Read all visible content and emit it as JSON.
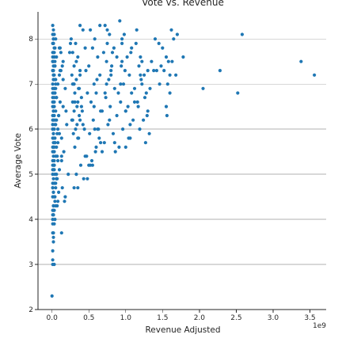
{
  "chart_data": {
    "type": "scatter",
    "title": "Vote vs. Revenue",
    "xlabel": "Revenue Adjusted",
    "ylabel": "Average Vote",
    "x_offset_label": "1e9",
    "x_unit_multiplier": 1000000000,
    "xlim": [
      -190000000.0,
      3720000000.0
    ],
    "ylim": [
      2.0,
      8.6
    ],
    "x_ticks": [
      0,
      500000000.0,
      1000000000.0,
      1500000000.0,
      2000000000.0,
      2500000000.0,
      3000000000.0,
      3500000000.0
    ],
    "x_tick_labels": [
      "0.0",
      "0.5",
      "1.0",
      "1.5",
      "2.0",
      "2.5",
      "3.0",
      "3.5"
    ],
    "y_ticks": [
      2,
      3,
      4,
      5,
      6,
      7,
      8
    ],
    "y_tick_labels": [
      "2",
      "3",
      "4",
      "5",
      "6",
      "7",
      "8"
    ],
    "grid": "horizontal",
    "marker_color": "#1f77b4",
    "series": [
      {
        "x": [
          10000000.0,
          20000000.0,
          30000000.0,
          20000000.0,
          50000000.0,
          10000000.0,
          20000000.0,
          40000000.0,
          100000000.0,
          20000000.0,
          10000000.0,
          30000000.0,
          60000000.0,
          150000000.0,
          10000000.0,
          20000000.0,
          40000000.0,
          120000000.0,
          10000000.0,
          30000000.0,
          20000000.0,
          20000000.0,
          50000000.0,
          80000000.0,
          10000000.0,
          30000000.0,
          180000000.0,
          20000000.0,
          40000000.0,
          10000000.0,
          60000000.0,
          20000000.0,
          110000000.0,
          30000000.0,
          10000000.0,
          50000000.0,
          20000000.0,
          90000000.0,
          30000000.0,
          10000000.0,
          20000000.0,
          40000000.0,
          200000000.0,
          10000000.0,
          30000000.0,
          70000000.0,
          20000000.0,
          10000000.0,
          130000000.0,
          40000000.0,
          20000000.0,
          60000000.0,
          10000000.0,
          30000000.0,
          160000000.0,
          20000000.0,
          50000000.0,
          10000000.0,
          80000000.0,
          30000000.0,
          20000000.0,
          100000000.0,
          10000000.0,
          40000000.0,
          220000000.0,
          20000000.0,
          60000000.0,
          30000000.0,
          10000000.0,
          140000000.0,
          50000000.0,
          20000000.0,
          90000000.0,
          10000000.0,
          30000000.0,
          170000000.0,
          40000000.0,
          20000000.0,
          70000000.0,
          10000000.0,
          250000000.0,
          30000000.0,
          110000000.0,
          20000000.0,
          50000000.0,
          10000000.0,
          190000000.0,
          40000000.0,
          80000000.0,
          20000000.0,
          30000000.0,
          130000000.0,
          10000000.0,
          60000000.0,
          240000000.0,
          20000000.0,
          100000000.0,
          40000000.0,
          150000000.0,
          10000000.0,
          260000000.0,
          320000000.0,
          280000000.0,
          350000000.0,
          300000000.0,
          380000000.0,
          270000000.0,
          330000000.0,
          290000000.0,
          360000000.0,
          310000000.0,
          400000000.0,
          280000000.0,
          340000000.0,
          300000000.0,
          370000000.0,
          270000000.0,
          420000000.0,
          320000000.0,
          290000000.0,
          450000000.0,
          330000000.0,
          380000000.0,
          300000000.0,
          480000000.0,
          350000000.0,
          410000000.0,
          280000000.0,
          440000000.0,
          360000000.0,
          310000000.0,
          470000000.0,
          390000000.0,
          330000000.0,
          430000000.0,
          300000000.0,
          460000000.0,
          370000000.0,
          400000000.0,
          340000000.0,
          520000000.0,
          580000000.0,
          550000000.0,
          620000000.0,
          500000000.0,
          650000000.0,
          570000000.0,
          600000000.0,
          530000000.0,
          680000000.0,
          560000000.0,
          630000000.0,
          510000000.0,
          660000000.0,
          590000000.0,
          540000000.0,
          700000000.0,
          610000000.0,
          570000000.0,
          640000000.0,
          720000000.0,
          780000000.0,
          750000000.0,
          820000000.0,
          740000000.0,
          800000000.0,
          770000000.0,
          850000000.0,
          730000000.0,
          790000000.0,
          880000000.0,
          760000000.0,
          830000000.0,
          710000000.0,
          860000000.0,
          810000000.0,
          900000000.0,
          780000000.0,
          840000000.0,
          740000000.0,
          920000000.0,
          980000000.0,
          950000000.0,
          1020000000.0,
          940000000.0,
          1050000000.0,
          970000000.0,
          1080000000.0,
          930000000.0,
          1000000000.0,
          1100000000.0,
          960000000.0,
          1040000000.0,
          910000000.0,
          1070000000.0,
          990000000.0,
          1120000000.0,
          1030000000.0,
          950000000.0,
          1060000000.0,
          1150000000.0,
          1200000000.0,
          1180000000.0,
          1250000000.0,
          1220000000.0,
          1280000000.0,
          1160000000.0,
          1300000000.0,
          1240000000.0,
          1190000000.0,
          1320000000.0,
          1270000000.0,
          1140000000.0,
          1350000000.0,
          1210000000.0,
          1380000000.0,
          1260000000.0,
          1170000000.0,
          1330000000.0,
          1290000000.0,
          20000000.0,
          30000000.0,
          10000000.0,
          40000000.0,
          20000000.0,
          50000000.0,
          10000000.0,
          30000000.0,
          20000000.0,
          60000000.0,
          10000000.0,
          40000000.0,
          20000000.0,
          70000000.0,
          30000000.0,
          10000000.0,
          50000000.0,
          20000000.0,
          80000000.0,
          30000000.0,
          20000000.0,
          120000000.0,
          40000000.0,
          10000000.0,
          150000000.0,
          30000000.0,
          60000000.0,
          20000000.0,
          90000000.0,
          10000000.0,
          100000000.0,
          40000000.0,
          20000000.0,
          130000000.0,
          30000000.0,
          70000000.0,
          10000000.0,
          180000000.0,
          50000000.0,
          20000000.0,
          10000000.0,
          20000000.0,
          30000000.0,
          10000000.0,
          20000000.0,
          40000000.0,
          10000000.0,
          30000000.0,
          20000000.0,
          10000000.0,
          50000000.0,
          20000000.0,
          80000000.0,
          10000000.0,
          30000000.0,
          20000000.0,
          60000000.0,
          10000000.0,
          40000000.0,
          20000000.0,
          110000000.0,
          140000000.0,
          280000000.0,
          310000000.0,
          380000000.0,
          350000000.0,
          450000000.0,
          520000000.0,
          600000000.0,
          580000000.0,
          660000000.0,
          720000000.0,
          800000000.0,
          880000000.0,
          930000000.0,
          1000000000.0,
          1060000000.0,
          1120000000.0,
          1200000000.0,
          40000000.0,
          20000000.0,
          10000000.0,
          30000000.0,
          20000000.0,
          10000000.0,
          20000000.0,
          10000000.0,
          30000000.0,
          10000000.0,
          20000000.0,
          10000000.0,
          130000000.0,
          20000000.0,
          10000000.0,
          0.0,
          10000000.0,
          380000000.0,
          420000000.0,
          650000000.0,
          750000000.0,
          950000000.0,
          1080000000.0,
          1220000000.0,
          1300000000.0,
          550000000.0,
          480000000.0,
          680000000.0,
          850000000.0,
          350000000.0,
          1000000000.0,
          500000000.0,
          620000000.0,
          1400000000.0,
          1450000000.0,
          1500000000.0,
          1550000000.0,
          1620000000.0,
          1650000000.0,
          1700000000.0,
          1580000000.0,
          1520000000.0,
          1600000000.0,
          1480000000.0,
          1630000000.0,
          1570000000.0,
          1420000000.0,
          1680000000.0,
          1460000000.0,
          1780000000.0,
          1550000000.0,
          1600000000.0,
          1560000000.0,
          2050000000.0,
          2280000000.0,
          2520000000.0,
          2580000000.0,
          3380000000.0,
          3560000000.0
        ],
        "y": [
          8.3,
          8.2,
          8.1,
          8.0,
          8.0,
          7.9,
          7.9,
          7.8,
          7.8,
          7.7,
          7.7,
          7.6,
          7.6,
          7.5,
          7.5,
          7.4,
          7.4,
          7.3,
          7.3,
          7.2,
          7.2,
          7.1,
          7.1,
          7.0,
          7.0,
          6.9,
          6.9,
          6.8,
          6.8,
          6.7,
          6.7,
          6.6,
          6.6,
          6.5,
          6.5,
          6.4,
          6.4,
          6.3,
          6.3,
          6.2,
          6.2,
          6.1,
          6.1,
          6.0,
          6.0,
          5.9,
          5.9,
          5.8,
          5.8,
          5.7,
          5.7,
          5.6,
          5.6,
          5.5,
          5.5,
          5.4,
          5.4,
          5.3,
          5.3,
          5.2,
          5.2,
          5.1,
          5.1,
          5.0,
          5.0,
          4.9,
          4.9,
          4.8,
          4.8,
          4.7,
          4.7,
          4.6,
          4.6,
          4.5,
          4.5,
          4.4,
          4.4,
          4.3,
          4.3,
          4.2,
          7.9,
          7.6,
          7.3,
          7.1,
          6.9,
          6.6,
          6.4,
          6.2,
          6.0,
          5.8,
          5.6,
          5.4,
          5.2,
          5.0,
          7.7,
          7.5,
          7.2,
          6.8,
          6.5,
          6.1,
          8.0,
          7.9,
          7.7,
          7.6,
          7.4,
          7.3,
          7.2,
          7.1,
          7.0,
          6.9,
          6.8,
          6.7,
          6.6,
          6.5,
          6.4,
          6.3,
          6.2,
          6.1,
          6.0,
          5.9,
          7.8,
          7.5,
          7.2,
          7.0,
          6.8,
          6.6,
          6.4,
          6.2,
          6.0,
          5.8,
          5.6,
          5.4,
          5.2,
          5.0,
          4.9,
          4.7,
          7.3,
          6.9,
          6.5,
          6.1,
          8.2,
          8.0,
          7.8,
          7.6,
          7.4,
          7.2,
          7.0,
          6.8,
          6.6,
          6.4,
          6.2,
          6.0,
          5.9,
          5.7,
          5.5,
          5.3,
          7.7,
          7.1,
          6.5,
          5.8,
          8.3,
          8.1,
          7.9,
          7.7,
          7.5,
          7.3,
          7.1,
          6.9,
          6.7,
          6.5,
          6.3,
          6.1,
          5.9,
          5.7,
          5.5,
          7.4,
          6.8,
          6.2,
          7.8,
          7.0,
          8.4,
          8.1,
          7.9,
          7.6,
          7.4,
          7.2,
          7.0,
          6.8,
          6.6,
          6.4,
          6.2,
          6.0,
          5.8,
          5.6,
          7.7,
          7.3,
          6.9,
          6.5,
          7.5,
          6.1,
          8.2,
          7.6,
          7.4,
          7.2,
          7.0,
          6.8,
          6.6,
          6.4,
          6.2,
          6.0,
          5.9,
          5.7,
          7.9,
          7.5,
          7.1,
          7.3,
          6.7,
          6.5,
          6.9,
          6.3,
          8.1,
          7.8,
          7.6,
          7.4,
          7.2,
          7.0,
          6.8,
          6.6,
          6.4,
          6.2,
          6.0,
          5.8,
          5.6,
          5.4,
          5.2,
          5.0,
          4.8,
          4.6,
          4.4,
          4.2,
          8.0,
          7.7,
          7.5,
          7.3,
          7.1,
          6.9,
          6.7,
          6.5,
          6.3,
          6.1,
          5.9,
          5.7,
          5.5,
          5.3,
          5.1,
          4.9,
          4.7,
          4.5,
          4.3,
          4.1,
          8.1,
          7.9,
          7.7,
          7.5,
          7.3,
          7.1,
          6.9,
          6.7,
          6.5,
          6.3,
          6.1,
          5.9,
          5.7,
          5.5,
          5.3,
          5.1,
          4.9,
          4.7,
          4.5,
          4.3,
          7.8,
          7.4,
          7.0,
          6.6,
          6.2,
          5.8,
          5.4,
          5.2,
          5.6,
          6.0,
          6.4,
          6.8,
          7.2,
          7.6,
          7.0,
          6.4,
          5.8,
          6.6,
          7.2,
          4.0,
          4.1,
          4.1,
          3.9,
          3.7,
          3.7,
          3.5,
          3.3,
          3.0,
          3.1,
          3.6,
          3.9,
          3.7,
          4.2,
          4.0,
          2.3,
          3.0,
          8.3,
          8.2,
          8.3,
          8.2,
          8.0,
          7.8,
          7.5,
          7.3,
          5.2,
          4.9,
          5.5,
          5.7,
          4.7,
          5.6,
          5.2,
          6.0,
          8.0,
          7.9,
          7.8,
          7.6,
          8.2,
          8.0,
          8.1,
          7.5,
          7.3,
          7.2,
          7.4,
          7.5,
          7.0,
          7.3,
          7.2,
          7.0,
          7.6,
          6.5,
          6.8,
          6.3,
          6.9,
          7.3,
          6.8,
          8.1,
          7.5,
          7.2
        ]
      }
    ]
  }
}
